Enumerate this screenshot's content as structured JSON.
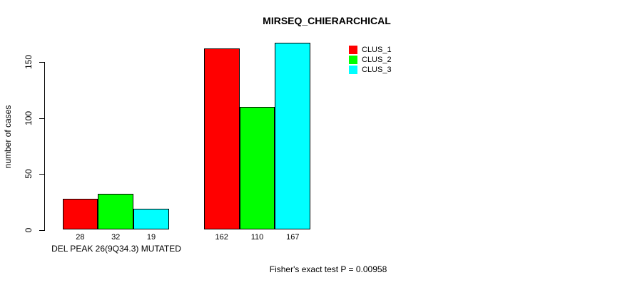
{
  "chart_data": {
    "type": "bar",
    "title": "MIRSEQ_CHIERARCHICAL",
    "ylabel": "number of cases",
    "ylim": [
      0,
      150
    ],
    "yticks": [
      0,
      50,
      100,
      150
    ],
    "categories": [
      "DEL PEAK 26(9Q34.3) MUTATED",
      ""
    ],
    "series": [
      {
        "name": "CLUS_1",
        "color": "#ff0000",
        "values": [
          28,
          162
        ]
      },
      {
        "name": "CLUS_2",
        "color": "#00ff00",
        "values": [
          32,
          110
        ]
      },
      {
        "name": "CLUS_3",
        "color": "#00ffff",
        "values": [
          19,
          167
        ]
      }
    ],
    "bar_value_labels": true,
    "annotation": "Fisher's exact test P = 0.00958",
    "legend_position": "top-right",
    "grid": false,
    "background_color": "#ffffff",
    "axis_color": "#000000"
  }
}
